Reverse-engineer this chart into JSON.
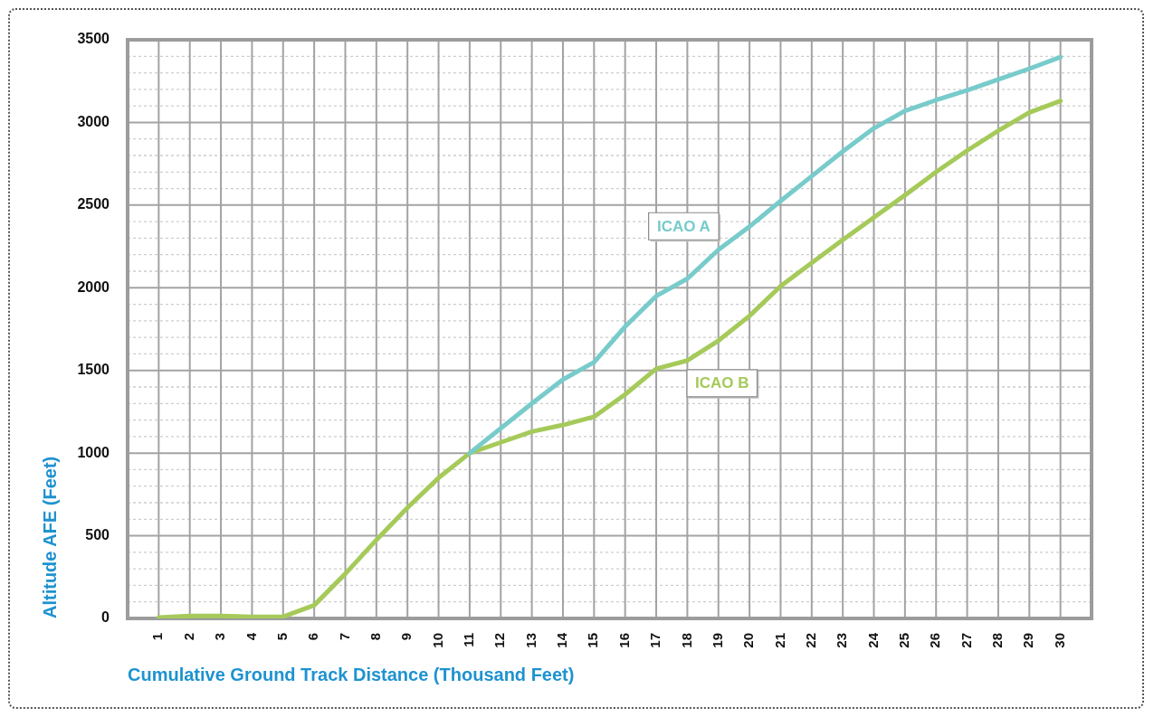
{
  "chart_data": {
    "type": "line",
    "xlabel": "Cumulative Ground Track Distance (Thousand Feet)",
    "ylabel": "Altitude AFE (Feet)",
    "x": [
      1,
      2,
      3,
      4,
      5,
      6,
      7,
      8,
      9,
      10,
      11,
      12,
      13,
      14,
      15,
      16,
      17,
      18,
      19,
      20,
      21,
      22,
      23,
      24,
      25,
      26,
      27,
      28,
      29,
      30
    ],
    "xlim": [
      0,
      31
    ],
    "xticks": [
      1,
      2,
      3,
      4,
      5,
      6,
      7,
      8,
      9,
      10,
      11,
      12,
      13,
      14,
      15,
      16,
      17,
      18,
      19,
      20,
      21,
      22,
      23,
      24,
      25,
      26,
      27,
      28,
      29,
      30
    ],
    "ylim": [
      0,
      3500
    ],
    "yticks": [
      0,
      {
        "value": 100,
        "label": null
      },
      {
        "value": 200,
        "label": null
      },
      {
        "value": 300,
        "label": null
      },
      {
        "value": 400,
        "label": null
      },
      500,
      {
        "value": 600,
        "label": null
      },
      {
        "value": 700,
        "label": null
      },
      {
        "value": 800,
        "label": null
      },
      {
        "value": 900,
        "label": null
      },
      1000,
      {
        "value": 1100,
        "label": null
      },
      {
        "value": 1200,
        "label": null
      },
      {
        "value": 1300,
        "label": null
      },
      {
        "value": 1400,
        "label": null
      },
      1500,
      {
        "value": 1600,
        "label": null
      },
      {
        "value": 1700,
        "label": null
      },
      {
        "value": 1800,
        "label": null
      },
      {
        "value": 1900,
        "label": null
      },
      2000,
      {
        "value": 2100,
        "label": null
      },
      {
        "value": 2200,
        "label": null
      },
      {
        "value": 2300,
        "label": null
      },
      {
        "value": 2400,
        "label": null
      },
      2500,
      {
        "value": 2600,
        "label": null
      },
      {
        "value": 2700,
        "label": null
      },
      {
        "value": 2800,
        "label": null
      },
      {
        "value": 2900,
        "label": null
      },
      3000,
      {
        "value": 3100,
        "label": null
      },
      {
        "value": 3200,
        "label": null
      },
      {
        "value": 3300,
        "label": null
      },
      {
        "value": 3400,
        "label": null
      },
      3500
    ],
    "grid": true,
    "series": [
      {
        "name": "ICAO A",
        "color": "#78cbcb",
        "values": [
          null,
          null,
          null,
          null,
          null,
          null,
          null,
          null,
          null,
          null,
          1000,
          1150,
          1300,
          1445,
          1550,
          1765,
          1950,
          2055,
          2230,
          2370,
          2525,
          2675,
          2825,
          2965,
          3070,
          3135,
          3195,
          3260,
          3325,
          3395
        ]
      },
      {
        "name": "ICAO B",
        "color": "#a5ca5a",
        "values": [
          5,
          15,
          15,
          10,
          10,
          80,
          270,
          475,
          670,
          850,
          1000,
          1065,
          1130,
          1170,
          1220,
          1355,
          1510,
          1560,
          1680,
          1830,
          2010,
          2150,
          2290,
          2425,
          2560,
          2700,
          2830,
          2950,
          3060,
          3130
        ]
      }
    ]
  }
}
